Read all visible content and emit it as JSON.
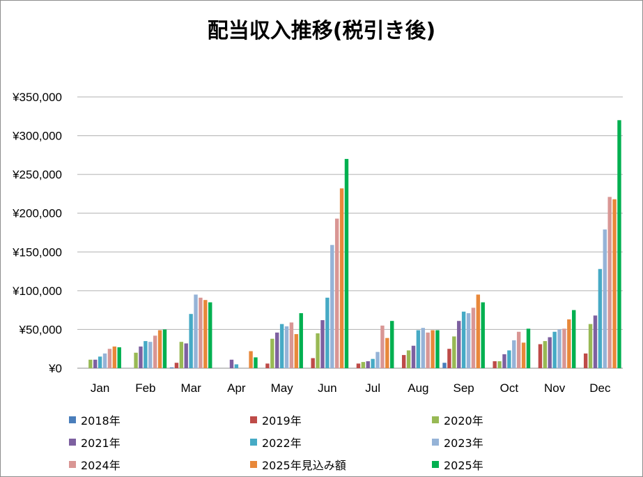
{
  "chart_data": {
    "type": "bar",
    "title": "配当収入推移(税引き後)",
    "categories": [
      "Jan",
      "Feb",
      "Mar",
      "Apr",
      "May",
      "Jun",
      "Jul",
      "Aug",
      "Sep",
      "Oct",
      "Nov",
      "Dec"
    ],
    "ylim": [
      0,
      350000
    ],
    "yticks": [
      0,
      50000,
      100000,
      150000,
      200000,
      250000,
      300000,
      350000
    ],
    "ytick_labels": [
      "¥0",
      "¥50,000",
      "¥100,000",
      "¥150,000",
      "¥200,000",
      "¥250,000",
      "¥300,000",
      "¥350,000"
    ],
    "grid": true,
    "legend_position": "bottom",
    "series": [
      {
        "name": "2018年",
        "color": "#4a7ebb",
        "values": [
          0,
          0,
          1000,
          0,
          0,
          0,
          0,
          0,
          7000,
          0,
          0,
          0
        ]
      },
      {
        "name": "2019年",
        "color": "#be4b48",
        "values": [
          0,
          0,
          7000,
          0,
          6000,
          13000,
          6000,
          17000,
          25000,
          9000,
          31000,
          19000
        ]
      },
      {
        "name": "2020年",
        "color": "#98b954",
        "values": [
          11000,
          20000,
          34000,
          0,
          38000,
          45000,
          8000,
          23000,
          41000,
          9000,
          35000,
          57000
        ]
      },
      {
        "name": "2021年",
        "color": "#7d60a0",
        "values": [
          11000,
          28000,
          32000,
          11000,
          46000,
          62000,
          9000,
          29000,
          61000,
          18000,
          40000,
          68000
        ]
      },
      {
        "name": "2022年",
        "color": "#46aac5",
        "values": [
          15000,
          35000,
          70000,
          5000,
          57000,
          91000,
          12000,
          49000,
          73000,
          23000,
          47000,
          128000
        ]
      },
      {
        "name": "2023年",
        "color": "#95b3d7",
        "values": [
          19000,
          34000,
          95000,
          0,
          54000,
          159000,
          21000,
          52000,
          71000,
          36000,
          50000,
          179000
        ]
      },
      {
        "name": "2024年",
        "color": "#d99694",
        "values": [
          25000,
          42000,
          91000,
          0,
          59000,
          193000,
          55000,
          46000,
          78000,
          47000,
          51000,
          221000
        ]
      },
      {
        "name": "2025年見込み額",
        "color": "#e8883a",
        "values": [
          28000,
          49000,
          88000,
          22000,
          44000,
          232000,
          39000,
          49000,
          95000,
          33000,
          63000,
          218000
        ]
      },
      {
        "name": "2025年",
        "color": "#00b050",
        "values": [
          27000,
          50000,
          85000,
          14000,
          71000,
          270000,
          61000,
          49000,
          85000,
          51000,
          75000,
          320000
        ]
      }
    ]
  }
}
